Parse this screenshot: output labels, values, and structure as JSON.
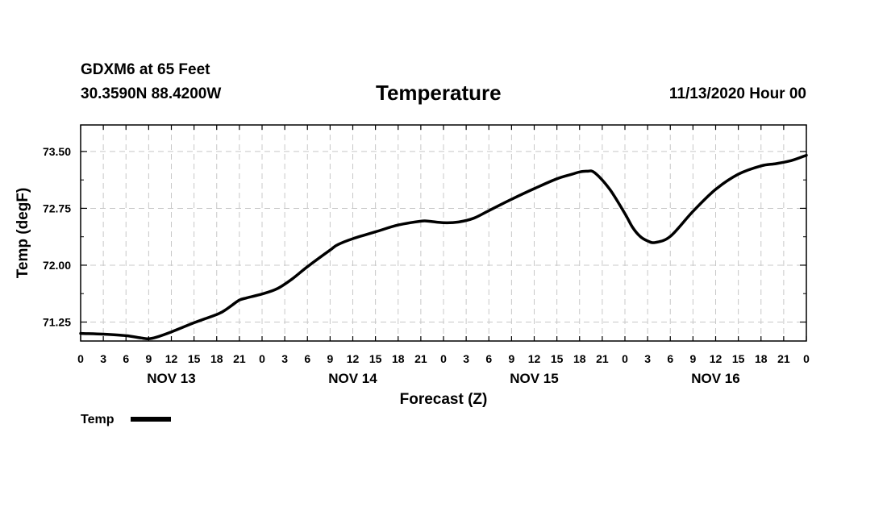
{
  "header": {
    "station": "GDXM6 at 65 Feet",
    "coords": "30.3590N 88.4200W",
    "title": "Temperature",
    "runtime": "11/13/2020 Hour 00"
  },
  "chart_data": {
    "type": "line",
    "title": "Temperature",
    "xlabel": "Forecast (Z)",
    "ylabel": "Temp (degF)",
    "xlim": [
      0,
      96
    ],
    "ylim": [
      71.0,
      73.85
    ],
    "x_tick_step": 3,
    "x_tick_labels": [
      "0",
      "3",
      "6",
      "9",
      "12",
      "15",
      "18",
      "21",
      "0",
      "3",
      "6",
      "9",
      "12",
      "15",
      "18",
      "21",
      "0",
      "3",
      "6",
      "9",
      "12",
      "15",
      "18",
      "21",
      "0",
      "3",
      "6",
      "9",
      "12",
      "15",
      "18",
      "21",
      "0"
    ],
    "y_ticks": [
      71.25,
      72.0,
      72.75,
      73.5
    ],
    "y_tick_labels": [
      "71.25",
      "72.00",
      "72.75",
      "73.50"
    ],
    "day_labels": [
      {
        "label": "NOV 13",
        "hour": 12
      },
      {
        "label": "NOV 14",
        "hour": 36
      },
      {
        "label": "NOV 15",
        "hour": 60
      },
      {
        "label": "NOV 16",
        "hour": 84
      }
    ],
    "grid": true,
    "legend": {
      "label": "Temp",
      "position": "bottom-left"
    },
    "series": [
      {
        "name": "Temp",
        "color": "#000000",
        "x": [
          0,
          3,
          6,
          8,
          9,
          10,
          12,
          15,
          18,
          19,
          20,
          21,
          22,
          24,
          26,
          28,
          30,
          33,
          34,
          36,
          39,
          42,
          45,
          46,
          48,
          50,
          52,
          54,
          57,
          60,
          63,
          65,
          66,
          67,
          68,
          70,
          72,
          73,
          74,
          75,
          76,
          78,
          81,
          84,
          87,
          90,
          92,
          94,
          96
        ],
        "y": [
          71.1,
          71.09,
          71.07,
          71.04,
          71.03,
          71.05,
          71.12,
          71.24,
          71.35,
          71.4,
          71.47,
          71.54,
          71.57,
          71.62,
          71.69,
          71.82,
          71.98,
          72.2,
          72.27,
          72.35,
          72.44,
          72.53,
          72.58,
          72.58,
          72.56,
          72.57,
          72.62,
          72.72,
          72.87,
          73.01,
          73.14,
          73.2,
          73.23,
          73.24,
          73.22,
          73.0,
          72.68,
          72.5,
          72.38,
          72.32,
          72.3,
          72.38,
          72.71,
          73.0,
          73.2,
          73.31,
          73.34,
          73.38,
          73.45
        ]
      }
    ]
  }
}
